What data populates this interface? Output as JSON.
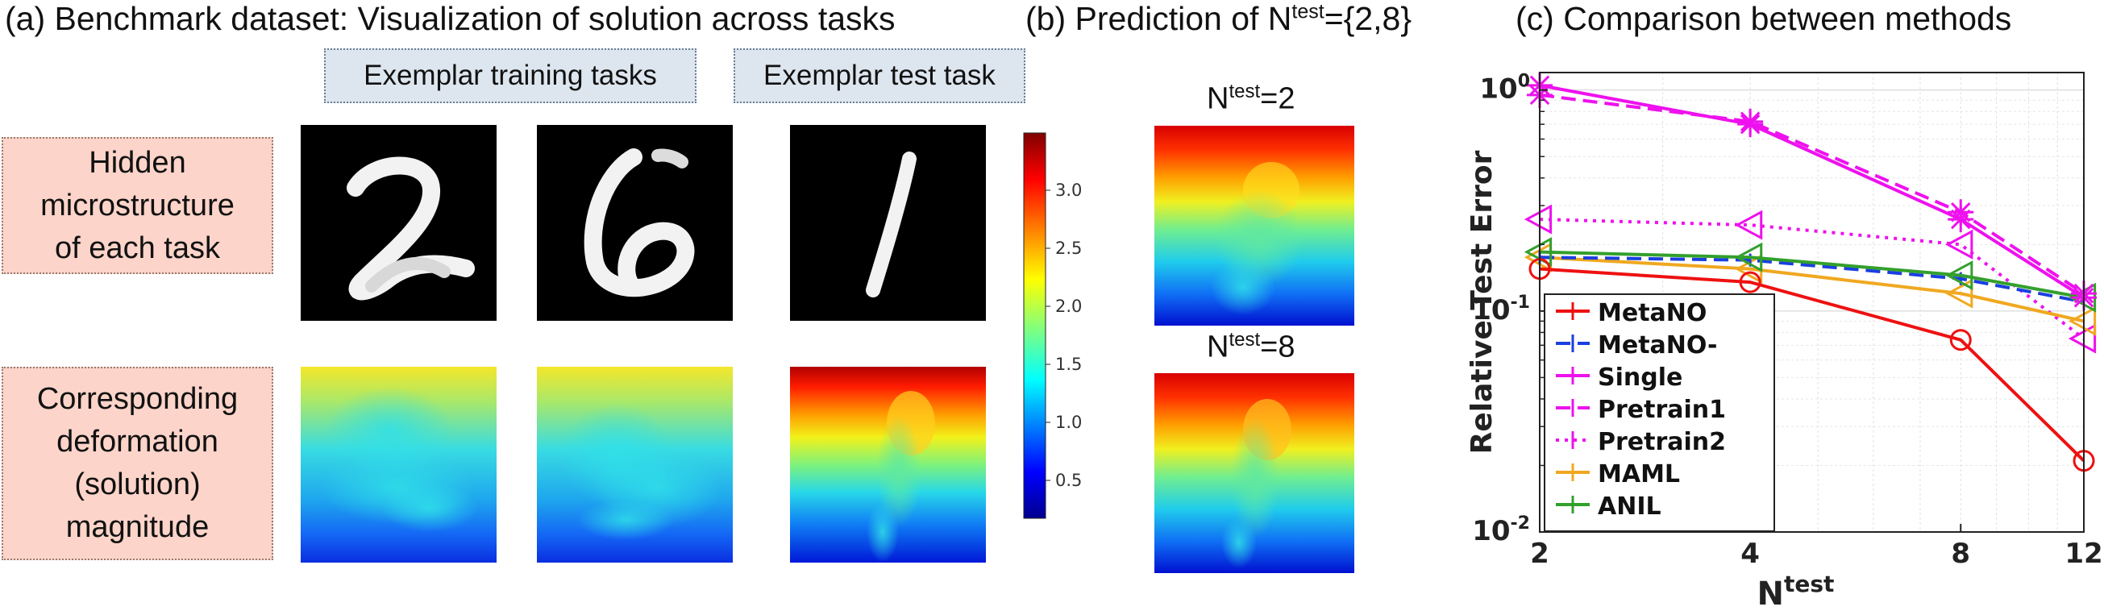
{
  "panel_a": {
    "title_letter": "(a)",
    "title_text": "Benchmark dataset: Visualization of solution across tasks",
    "training_label": "Exemplar training tasks",
    "test_label": "Exemplar test task",
    "row1_label": "Hidden\nmicrostructure\nof each task",
    "row2_label": "Corresponding\ndeformation\n(solution)\nmagnitude",
    "colorbar_ticks": [
      "3.0",
      "2.5",
      "2.0",
      "1.5",
      "1.0",
      "0.5"
    ]
  },
  "panel_b": {
    "title_letter": "(b)",
    "title_prefix": "Prediction of N",
    "title_sup": "test",
    "title_suffix": "={2,8}",
    "sub1_prefix": "N",
    "sub1_sup": "test",
    "sub1_suffix": "=2",
    "sub2_prefix": "N",
    "sub2_sup": "test",
    "sub2_suffix": "=8"
  },
  "panel_c": {
    "title_letter": "(c)",
    "title_text": "Comparison between methods"
  },
  "colors": {
    "MetaNO": "#ee1111",
    "MetaNO-": "#1a3fe0",
    "Single": "#ee11ee",
    "Pretrain1": "#ee11ee",
    "Pretrain2": "#ee11ee",
    "MAML": "#f0a820",
    "ANIL": "#33a02c"
  },
  "chart_data": {
    "type": "line",
    "title": "",
    "xlabel": "N",
    "xlabel_sup": "test",
    "ylabel": "Relative Test Error",
    "x": [
      2,
      4,
      8,
      12
    ],
    "xticks": [
      "2",
      "4",
      "8",
      "12"
    ],
    "yscale": "log",
    "xscale": "log",
    "ylim": [
      0.01,
      1.2
    ],
    "yticks": [
      {
        "base": "10",
        "exp": "0"
      },
      {
        "base": "10",
        "exp": "-1"
      },
      {
        "base": "10",
        "exp": "-2"
      }
    ],
    "grid": true,
    "legend_position": "bottom-left",
    "series": [
      {
        "name": "MetaNO",
        "values": [
          0.155,
          0.135,
          0.074,
          0.021
        ],
        "style": "solid",
        "marker": "circle"
      },
      {
        "name": "MetaNO-",
        "values": [
          0.175,
          0.17,
          0.14,
          0.11
        ],
        "style": "dashed",
        "marker": "none"
      },
      {
        "name": "Single",
        "values": [
          1.05,
          0.7,
          0.26,
          0.115
        ],
        "style": "solid",
        "marker": "star"
      },
      {
        "name": "Pretrain1",
        "values": [
          0.95,
          0.72,
          0.28,
          0.12
        ],
        "style": "dashed",
        "marker": "star"
      },
      {
        "name": "Pretrain2",
        "values": [
          0.26,
          0.245,
          0.2,
          0.075
        ],
        "style": "dotted",
        "marker": "triangle"
      },
      {
        "name": "MAML",
        "values": [
          0.175,
          0.155,
          0.12,
          0.09
        ],
        "style": "solid",
        "marker": "triangle"
      },
      {
        "name": "ANIL",
        "values": [
          0.185,
          0.175,
          0.145,
          0.115
        ],
        "style": "solid",
        "marker": "triangle"
      }
    ]
  }
}
